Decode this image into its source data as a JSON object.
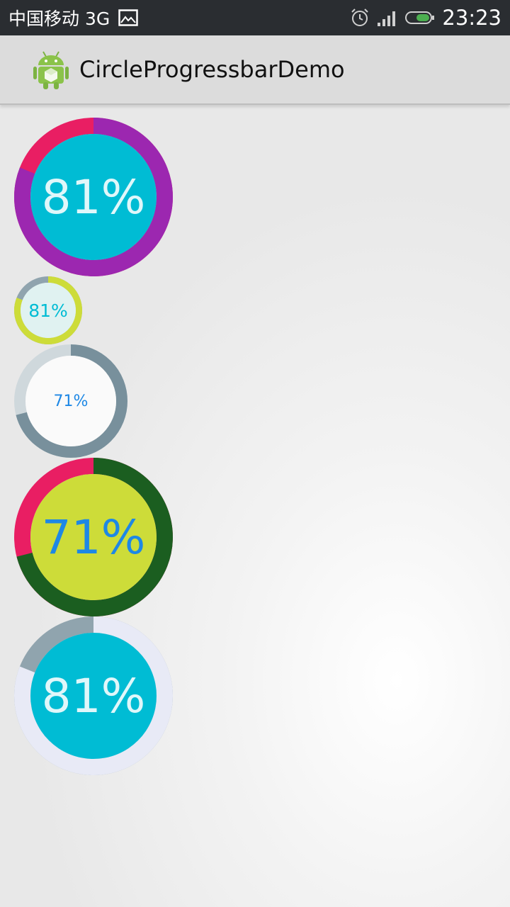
{
  "status_bar": {
    "carrier": "中国移动 3G",
    "time": "23:23",
    "icons": [
      "gallery-icon",
      "alarm-icon",
      "signal-icon",
      "battery-icon"
    ]
  },
  "action_bar": {
    "title": "CircleProgressbarDemo",
    "icon": "android-app-icon"
  },
  "progress_circles": [
    {
      "text": "81%",
      "progress": 0.81,
      "colors": {
        "progress": "#9c27b0",
        "remainder": "#e91e63",
        "inner": "#00bcd4",
        "text": "#e0f7fa"
      }
    },
    {
      "text": "81%",
      "progress": 0.81,
      "colors": {
        "progress": "#cddc39",
        "remainder": "#90a4ae",
        "inner": "#e0f2f1",
        "text": "#00bcd4"
      }
    },
    {
      "text": "71%",
      "progress": 0.71,
      "colors": {
        "progress": "#78909c",
        "remainder": "#cfd8dc",
        "inner": "#fafafa",
        "text": "#1e88e5"
      }
    },
    {
      "text": "71%",
      "progress": 0.71,
      "colors": {
        "progress": "#1b5e20",
        "remainder": "#e91e63",
        "inner": "#cddc39",
        "text": "#1e88e5"
      }
    },
    {
      "text": "81%",
      "progress": 0.81,
      "colors": {
        "progress": "#e8eaf6",
        "remainder": "#90a4ae",
        "inner": "#00bcd4",
        "text": "#e0f7fa"
      }
    }
  ]
}
